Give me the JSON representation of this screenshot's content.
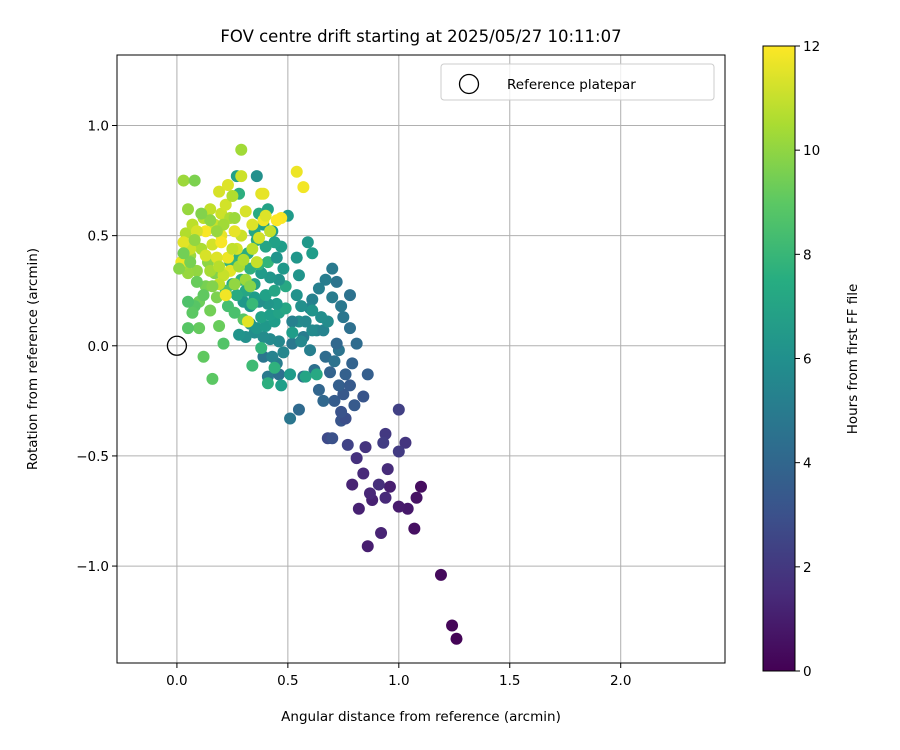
{
  "chart_data": {
    "type": "scatter",
    "title": "FOV centre drift starting at 2025/05/27 10:11:07",
    "xlabel": "Angular distance from reference (arcmin)",
    "ylabel": "Rotation from reference (arcmin)",
    "xlim": [
      -0.27,
      2.47
    ],
    "ylim": [
      -1.44,
      1.32
    ],
    "xticks": [
      0.0,
      0.5,
      1.0,
      1.5,
      2.0
    ],
    "xtick_labels": [
      "0.0",
      "0.5",
      "1.0",
      "1.5",
      "2.0"
    ],
    "yticks": [
      -1.0,
      -0.5,
      0.0,
      0.5,
      1.0
    ],
    "ytick_labels": [
      "−1.0",
      "−0.5",
      "0.0",
      "0.5",
      "1.0"
    ],
    "grid": true,
    "legend": {
      "position": "top-right",
      "label": "Reference platepar"
    },
    "reference_point": {
      "x": 0.0,
      "y": 0.0
    },
    "colorbar": {
      "label": "Hours from first FF file",
      "range": [
        0,
        12
      ],
      "ticks": [
        0,
        2,
        4,
        6,
        8,
        10,
        12
      ],
      "tick_labels": [
        "0",
        "2",
        "4",
        "6",
        "8",
        "10",
        "12"
      ],
      "colormap": "viridis"
    },
    "point_layout": "[x, y, hours]",
    "points": [
      [
        1.26,
        -1.33,
        0.1
      ],
      [
        1.24,
        -1.27,
        0.2
      ],
      [
        1.19,
        -1.04,
        0.3
      ],
      [
        1.07,
        -0.83,
        0.5
      ],
      [
        1.1,
        -0.64,
        0.4
      ],
      [
        1.08,
        -0.69,
        0.6
      ],
      [
        1.04,
        -0.74,
        0.8
      ],
      [
        1.0,
        -0.73,
        0.9
      ],
      [
        0.86,
        -0.91,
        1.0
      ],
      [
        0.92,
        -0.85,
        1.2
      ],
      [
        0.88,
        -0.7,
        1.1
      ],
      [
        0.87,
        -0.67,
        1.3
      ],
      [
        0.94,
        -0.69,
        1.4
      ],
      [
        0.96,
        -0.64,
        1.0
      ],
      [
        0.91,
        -0.63,
        1.6
      ],
      [
        0.95,
        -0.56,
        1.5
      ],
      [
        0.79,
        -0.63,
        1.2
      ],
      [
        0.82,
        -0.74,
        1.1
      ],
      [
        0.84,
        -0.58,
        1.4
      ],
      [
        0.81,
        -0.51,
        1.7
      ],
      [
        0.85,
        -0.46,
        1.8
      ],
      [
        1.03,
        -0.44,
        1.9
      ],
      [
        0.94,
        -0.4,
        2.0
      ],
      [
        0.93,
        -0.44,
        2.2
      ],
      [
        1.0,
        -0.48,
        2.1
      ],
      [
        1.0,
        -0.29,
        2.3
      ],
      [
        0.77,
        -0.45,
        2.4
      ],
      [
        0.68,
        -0.42,
        2.7
      ],
      [
        0.7,
        -0.42,
        3.0
      ],
      [
        0.74,
        -0.34,
        3.2
      ],
      [
        0.76,
        -0.33,
        2.9
      ],
      [
        0.8,
        -0.27,
        3.4
      ],
      [
        0.74,
        -0.3,
        3.1
      ],
      [
        0.71,
        -0.25,
        3.5
      ],
      [
        0.75,
        -0.22,
        3.3
      ],
      [
        0.73,
        -0.18,
        3.6
      ],
      [
        0.76,
        -0.13,
        3.7
      ],
      [
        0.84,
        -0.23,
        3.2
      ],
      [
        0.78,
        -0.18,
        3.4
      ],
      [
        0.69,
        -0.12,
        3.8
      ],
      [
        0.64,
        -0.2,
        3.9
      ],
      [
        0.66,
        -0.25,
        4.0
      ],
      [
        0.55,
        -0.29,
        4.1
      ],
      [
        0.51,
        -0.33,
        4.7
      ],
      [
        0.57,
        -0.14,
        4.3
      ],
      [
        0.62,
        -0.11,
        4.4
      ],
      [
        0.67,
        -0.05,
        4.2
      ],
      [
        0.71,
        -0.07,
        4.5
      ],
      [
        0.73,
        -0.02,
        4.6
      ],
      [
        0.72,
        0.01,
        4.0
      ],
      [
        0.79,
        -0.08,
        3.8
      ],
      [
        0.81,
        0.01,
        4.2
      ],
      [
        0.78,
        0.08,
        4.4
      ],
      [
        0.86,
        -0.13,
        3.6
      ],
      [
        0.75,
        0.13,
        4.7
      ],
      [
        0.78,
        0.23,
        4.5
      ],
      [
        0.74,
        0.18,
        4.8
      ],
      [
        0.72,
        0.29,
        4.6
      ],
      [
        0.7,
        0.22,
        5.0
      ],
      [
        0.7,
        0.35,
        4.9
      ],
      [
        0.67,
        0.3,
        5.1
      ],
      [
        0.64,
        0.26,
        5.2
      ],
      [
        0.61,
        0.21,
        5.3
      ],
      [
        0.6,
        0.17,
        5.4
      ],
      [
        0.63,
        0.07,
        5.5
      ],
      [
        0.57,
        0.04,
        5.0
      ],
      [
        0.52,
        0.01,
        4.8
      ],
      [
        0.56,
        0.02,
        5.6
      ],
      [
        0.6,
        -0.02,
        5.2
      ],
      [
        0.61,
        0.07,
        5.7
      ],
      [
        0.66,
        0.07,
        5.4
      ],
      [
        0.68,
        0.11,
        5.8
      ],
      [
        0.55,
        0.11,
        5.9
      ],
      [
        0.56,
        0.18,
        6.0
      ],
      [
        0.54,
        0.23,
        6.1
      ],
      [
        0.55,
        0.32,
        6.2
      ],
      [
        0.54,
        0.4,
        6.3
      ],
      [
        0.59,
        0.47,
        6.4
      ],
      [
        0.61,
        0.42,
        6.6
      ],
      [
        0.5,
        0.59,
        6.5
      ],
      [
        0.41,
        -0.14,
        4.9
      ],
      [
        0.46,
        -0.13,
        4.4
      ],
      [
        0.45,
        -0.08,
        5.1
      ],
      [
        0.39,
        -0.05,
        4.7
      ],
      [
        0.43,
        -0.05,
        5.4
      ],
      [
        0.51,
        -0.13,
        6.5
      ],
      [
        0.47,
        -0.18,
        6.7
      ],
      [
        0.58,
        -0.14,
        7.0
      ],
      [
        0.63,
        -0.13,
        7.2
      ],
      [
        0.48,
        -0.03,
        5.5
      ],
      [
        0.46,
        0.02,
        5.6
      ],
      [
        0.42,
        0.03,
        5.7
      ],
      [
        0.39,
        0.04,
        5.8
      ],
      [
        0.35,
        0.06,
        5.9
      ],
      [
        0.31,
        0.04,
        6.0
      ],
      [
        0.28,
        0.05,
        6.2
      ],
      [
        0.33,
        0.1,
        6.1
      ],
      [
        0.36,
        0.08,
        6.3
      ],
      [
        0.4,
        0.09,
        6.4
      ],
      [
        0.44,
        0.11,
        6.6
      ],
      [
        0.38,
        0.13,
        6.8
      ],
      [
        0.42,
        0.14,
        6.7
      ],
      [
        0.46,
        0.15,
        6.9
      ],
      [
        0.49,
        0.17,
        7.1
      ],
      [
        0.45,
        0.19,
        6.5
      ],
      [
        0.41,
        0.19,
        6.3
      ],
      [
        0.37,
        0.2,
        6.0
      ],
      [
        0.33,
        0.18,
        6.2
      ],
      [
        0.3,
        0.2,
        6.4
      ],
      [
        0.35,
        0.22,
        6.6
      ],
      [
        0.4,
        0.23,
        6.8
      ],
      [
        0.44,
        0.25,
        7.0
      ],
      [
        0.49,
        0.27,
        7.2
      ],
      [
        0.46,
        0.3,
        6.1
      ],
      [
        0.42,
        0.31,
        6.3
      ],
      [
        0.38,
        0.33,
        6.5
      ],
      [
        0.35,
        0.28,
        6.9
      ],
      [
        0.31,
        0.25,
        7.1
      ],
      [
        0.27,
        0.23,
        7.3
      ],
      [
        0.25,
        0.28,
        7.4
      ],
      [
        0.29,
        0.3,
        7.5
      ],
      [
        0.33,
        0.35,
        7.6
      ],
      [
        0.37,
        0.37,
        7.8
      ],
      [
        0.41,
        0.38,
        7.9
      ],
      [
        0.45,
        0.4,
        6.2
      ],
      [
        0.48,
        0.35,
        6.4
      ],
      [
        0.47,
        0.45,
        6.6
      ],
      [
        0.44,
        0.47,
        6.8
      ],
      [
        0.4,
        0.45,
        7.0
      ],
      [
        0.36,
        0.48,
        7.2
      ],
      [
        0.32,
        0.42,
        7.4
      ],
      [
        0.28,
        0.4,
        7.6
      ],
      [
        0.24,
        0.38,
        7.8
      ],
      [
        0.43,
        0.52,
        6.5
      ],
      [
        0.39,
        0.55,
        6.7
      ],
      [
        0.35,
        0.52,
        7.1
      ],
      [
        0.37,
        0.6,
        7.3
      ],
      [
        0.41,
        0.62,
        6.9
      ],
      [
        0.36,
        0.77,
        6.0
      ],
      [
        0.27,
        0.77,
        6.8
      ],
      [
        0.28,
        0.69,
        7.5
      ],
      [
        0.52,
        0.11,
        5.3
      ],
      [
        0.58,
        0.11,
        5.6
      ],
      [
        0.65,
        0.13,
        5.9
      ],
      [
        0.61,
        0.16,
        6.2
      ],
      [
        0.52,
        0.06,
        6.6
      ],
      [
        0.34,
        -0.09,
        8.2
      ],
      [
        0.44,
        -0.1,
        7.7
      ],
      [
        0.38,
        -0.01,
        7.9
      ],
      [
        0.41,
        -0.17,
        7.5
      ],
      [
        0.23,
        0.18,
        8.4
      ],
      [
        0.22,
        0.25,
        8.6
      ],
      [
        0.3,
        0.12,
        8.8
      ],
      [
        0.26,
        0.15,
        8.5
      ],
      [
        0.21,
        0.01,
        8.7
      ],
      [
        0.16,
        -0.15,
        8.9
      ],
      [
        0.12,
        -0.05,
        9.0
      ],
      [
        0.19,
        0.09,
        9.2
      ],
      [
        0.15,
        0.16,
        9.4
      ],
      [
        0.18,
        0.22,
        9.6
      ],
      [
        0.1,
        0.2,
        9.3
      ],
      [
        0.13,
        0.27,
        9.5
      ],
      [
        0.17,
        0.33,
        9.7
      ],
      [
        0.14,
        0.38,
        9.9
      ],
      [
        0.09,
        0.34,
        10.0
      ],
      [
        0.05,
        0.33,
        10.1
      ],
      [
        0.03,
        0.37,
        10.3
      ],
      [
        0.06,
        0.41,
        10.2
      ],
      [
        0.08,
        0.46,
        10.4
      ],
      [
        0.11,
        0.44,
        10.5
      ],
      [
        0.04,
        0.51,
        10.6
      ],
      [
        0.07,
        0.55,
        10.8
      ],
      [
        0.12,
        0.58,
        10.7
      ],
      [
        0.15,
        0.62,
        10.9
      ],
      [
        0.17,
        0.55,
        11.0
      ],
      [
        0.2,
        0.6,
        11.1
      ],
      [
        0.22,
        0.64,
        11.2
      ],
      [
        0.19,
        0.7,
        11.3
      ],
      [
        0.23,
        0.73,
        11.4
      ],
      [
        0.25,
        0.68,
        10.6
      ],
      [
        0.05,
        0.62,
        10.1
      ],
      [
        0.03,
        0.75,
        10.2
      ],
      [
        0.08,
        0.75,
        9.6
      ],
      [
        0.29,
        0.89,
        10.3
      ],
      [
        0.29,
        0.77,
        11.1
      ],
      [
        0.38,
        0.69,
        11.5
      ],
      [
        0.39,
        0.69,
        11.6
      ],
      [
        0.54,
        0.79,
        11.7
      ],
      [
        0.57,
        0.72,
        11.8
      ],
      [
        0.47,
        0.58,
        11.9
      ],
      [
        0.45,
        0.57,
        12.0
      ],
      [
        0.39,
        0.57,
        11.8
      ],
      [
        0.34,
        0.55,
        11.4
      ],
      [
        0.31,
        0.61,
        11.3
      ],
      [
        0.29,
        0.5,
        11.1
      ],
      [
        0.26,
        0.52,
        11.6
      ],
      [
        0.27,
        0.44,
        11.2
      ],
      [
        0.23,
        0.4,
        11.7
      ],
      [
        0.24,
        0.34,
        11.5
      ],
      [
        0.21,
        0.32,
        11.0
      ],
      [
        0.19,
        0.28,
        10.9
      ],
      [
        0.22,
        0.23,
        11.8
      ],
      [
        0.18,
        0.4,
        11.4
      ],
      [
        0.16,
        0.46,
        11.2
      ],
      [
        0.2,
        0.5,
        11.6
      ],
      [
        0.13,
        0.52,
        11.9
      ],
      [
        0.09,
        0.52,
        11.3
      ],
      [
        0.06,
        0.44,
        11.1
      ],
      [
        0.03,
        0.47,
        11.5
      ],
      [
        0.02,
        0.38,
        11.7
      ],
      [
        0.28,
        0.36,
        10.4
      ],
      [
        0.31,
        0.3,
        10.2
      ],
      [
        0.26,
        0.28,
        10.0
      ],
      [
        0.33,
        0.27,
        9.8
      ],
      [
        0.3,
        0.39,
        10.6
      ],
      [
        0.36,
        0.38,
        11.0
      ],
      [
        0.34,
        0.44,
        10.8
      ],
      [
        0.37,
        0.49,
        11.2
      ],
      [
        0.42,
        0.52,
        10.9
      ],
      [
        0.4,
        0.59,
        11.4
      ],
      [
        0.24,
        0.58,
        10.5
      ],
      [
        0.21,
        0.55,
        10.3
      ],
      [
        0.18,
        0.52,
        10.1
      ],
      [
        0.15,
        0.57,
        9.9
      ],
      [
        0.11,
        0.6,
        9.7
      ],
      [
        0.06,
        0.38,
        9.5
      ],
      [
        0.09,
        0.29,
        9.2
      ],
      [
        0.12,
        0.23,
        9.0
      ],
      [
        0.08,
        0.18,
        8.8
      ],
      [
        0.05,
        0.2,
        8.6
      ],
      [
        0.07,
        0.15,
        8.9
      ],
      [
        0.1,
        0.08,
        9.1
      ],
      [
        0.05,
        0.08,
        8.8
      ],
      [
        0.01,
        0.35,
        9.8
      ],
      [
        0.03,
        0.42,
        9.4
      ],
      [
        0.15,
        0.34,
        10.4
      ],
      [
        0.19,
        0.36,
        10.7
      ],
      [
        0.25,
        0.44,
        10.9
      ],
      [
        0.32,
        0.11,
        11.5
      ],
      [
        0.2,
        0.47,
        11.9
      ],
      [
        0.26,
        0.58,
        10.2
      ],
      [
        0.13,
        0.41,
        11.3
      ],
      [
        0.08,
        0.48,
        10.0
      ],
      [
        0.16,
        0.27,
        9.7
      ],
      [
        0.34,
        0.19,
        8.1
      ]
    ]
  }
}
